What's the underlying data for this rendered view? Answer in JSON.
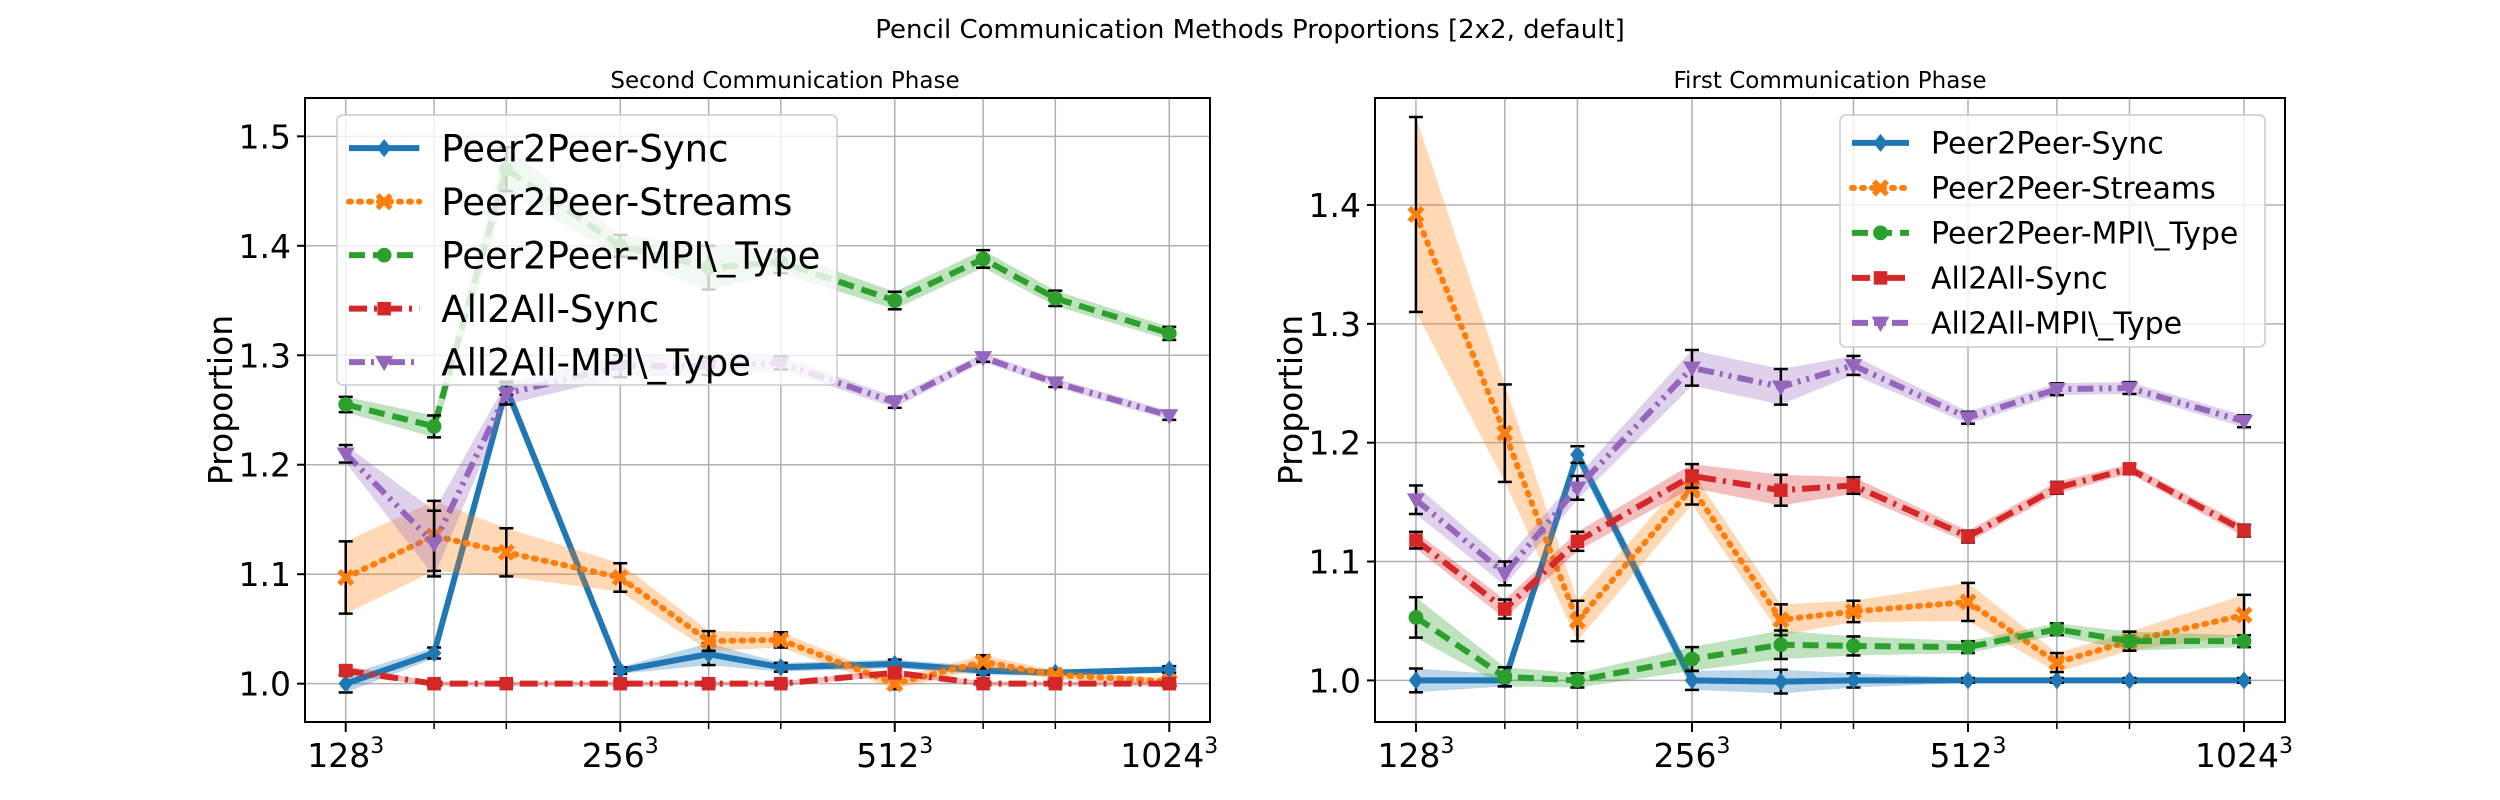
{
  "figure": {
    "suptitle": "Pencil Communication Methods Proportions [2x2, default]"
  },
  "colors": {
    "Peer2Peer-Sync": "#1f77b4",
    "Peer2Peer-Streams": "#ff7f0e",
    "Peer2Peer-MPI\\_Type": "#2ca02c",
    "All2All-Sync": "#d62728",
    "All2All-MPI\\_Type": "#9467bd"
  },
  "chart_data": [
    {
      "type": "line",
      "title": "Second Communication Phase",
      "xlabel": "",
      "ylabel": "Proportion",
      "x": [
        128,
        160,
        192,
        256,
        320,
        384,
        512,
        640,
        768,
        1024
      ],
      "x_scale": "log2",
      "xticks": [
        {
          "value": 128,
          "base": "128",
          "exp": "3"
        },
        {
          "value": 256,
          "base": "256",
          "exp": "3"
        },
        {
          "value": 512,
          "base": "512",
          "exp": "3"
        },
        {
          "value": 1024,
          "base": "1024",
          "exp": "3"
        }
      ],
      "yticks": [
        "1.0",
        "1.1",
        "1.2",
        "1.3",
        "1.4",
        "1.5"
      ],
      "ylim": [
        0.965,
        1.535
      ],
      "grid": true,
      "legend_position": "upper-left",
      "series": [
        {
          "name": "Peer2Peer-Sync",
          "style": "solid",
          "marker": "diamond",
          "values": [
            1.0,
            1.028,
            1.27,
            1.012,
            1.027,
            1.015,
            1.018,
            1.012,
            1.01,
            1.013
          ],
          "err": [
            0.008,
            0.005,
            0.006,
            0.003,
            0.01,
            0.004,
            0.004,
            0.004,
            0.003,
            0.003
          ]
        },
        {
          "name": "Peer2Peer-Streams",
          "style": "dotted",
          "marker": "x",
          "values": [
            1.097,
            1.135,
            1.12,
            1.097,
            1.039,
            1.04,
            1.0,
            1.02,
            1.008,
            1.002
          ],
          "err": [
            0.033,
            0.032,
            0.022,
            0.013,
            0.009,
            0.007,
            0.005,
            0.006,
            0.004,
            0.003
          ]
        },
        {
          "name": "Peer2Peer-MPI\\_Type",
          "style": "dashed",
          "marker": "circle",
          "values": [
            1.255,
            1.235,
            1.47,
            1.4,
            1.38,
            1.385,
            1.35,
            1.388,
            1.352,
            1.32
          ],
          "err": [
            0.007,
            0.01,
            0.02,
            0.01,
            0.02,
            0.01,
            0.008,
            0.008,
            0.007,
            0.006
          ]
        },
        {
          "name": "All2All-Sync",
          "style": "dashdot",
          "marker": "square",
          "values": [
            1.012,
            1.0,
            1.0,
            1.0,
            1.0,
            1.0,
            1.01,
            1.0,
            1.0,
            1.0
          ],
          "err": [
            0.004,
            0.002,
            0.002,
            0.002,
            0.002,
            0.002,
            0.003,
            0.002,
            0.002,
            0.002
          ]
        },
        {
          "name": "All2All-MPI\\_Type",
          "style": "dashdotdot",
          "marker": "triangle-down",
          "values": [
            1.21,
            1.128,
            1.265,
            1.29,
            1.29,
            1.293,
            1.257,
            1.298,
            1.275,
            1.245
          ],
          "err": [
            0.008,
            0.03,
            0.01,
            0.01,
            0.008,
            0.006,
            0.005,
            0.004,
            0.004,
            0.004
          ]
        }
      ]
    },
    {
      "type": "line",
      "title": "First Communication Phase",
      "xlabel": "",
      "ylabel": "Proportion",
      "x": [
        128,
        160,
        192,
        256,
        320,
        384,
        512,
        640,
        768,
        1024
      ],
      "x_scale": "log2",
      "xticks": [
        {
          "value": 128,
          "base": "128",
          "exp": "3"
        },
        {
          "value": 256,
          "base": "256",
          "exp": "3"
        },
        {
          "value": 512,
          "base": "512",
          "exp": "3"
        },
        {
          "value": 1024,
          "base": "1024",
          "exp": "3"
        }
      ],
      "yticks": [
        "1.0",
        "1.1",
        "1.2",
        "1.3",
        "1.4"
      ],
      "ylim": [
        0.965,
        1.49
      ],
      "grid": true,
      "legend_position": "upper-right",
      "series": [
        {
          "name": "Peer2Peer-Sync",
          "style": "solid",
          "marker": "diamond",
          "values": [
            1.0,
            1.0,
            1.19,
            1.0,
            0.999,
            1.0,
            1.0,
            1.0,
            1.0,
            1.0
          ],
          "err": [
            0.01,
            0.005,
            0.007,
            0.008,
            0.01,
            0.006,
            0.002,
            0.002,
            0.002,
            0.002
          ]
        },
        {
          "name": "Peer2Peer-Streams",
          "style": "dotted",
          "marker": "x",
          "values": [
            1.392,
            1.208,
            1.05,
            1.162,
            1.051,
            1.058,
            1.066,
            1.015,
            1.033,
            1.055
          ],
          "err": [
            0.082,
            0.041,
            0.017,
            0.014,
            0.013,
            0.009,
            0.016,
            0.008,
            0.008,
            0.017
          ]
        },
        {
          "name": "Peer2Peer-MPI\\_Type",
          "style": "dashed",
          "marker": "circle",
          "values": [
            1.053,
            1.003,
            1.0,
            1.018,
            1.03,
            1.029,
            1.028,
            1.043,
            1.033,
            1.033
          ],
          "err": [
            0.017,
            0.008,
            0.006,
            0.01,
            0.012,
            0.008,
            0.005,
            0.005,
            0.008,
            0.005
          ]
        },
        {
          "name": "All2All-Sync",
          "style": "dashdot",
          "marker": "square",
          "values": [
            1.118,
            1.06,
            1.117,
            1.172,
            1.16,
            1.164,
            1.121,
            1.162,
            1.178,
            1.126
          ],
          "err": [
            0.007,
            0.008,
            0.008,
            0.01,
            0.013,
            0.007,
            0.005,
            0.005,
            0.004,
            0.005
          ]
        },
        {
          "name": "All2All-MPI\\_Type",
          "style": "dashdotdot",
          "marker": "triangle-down",
          "values": [
            1.152,
            1.09,
            1.162,
            1.263,
            1.247,
            1.265,
            1.221,
            1.245,
            1.246,
            1.218
          ],
          "err": [
            0.012,
            0.01,
            0.01,
            0.015,
            0.015,
            0.008,
            0.005,
            0.005,
            0.005,
            0.005
          ]
        }
      ]
    }
  ]
}
